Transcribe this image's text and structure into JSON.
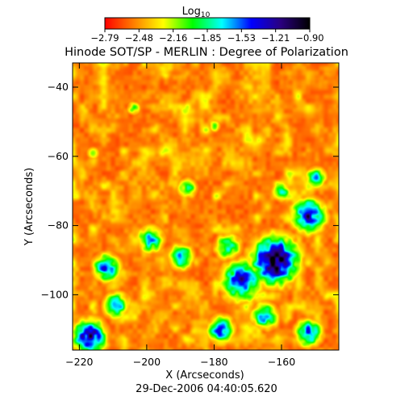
{
  "chart_data": {
    "type": "heatmap",
    "title": "Hinode SOT/SP - MERLIN : Degree of Polarization",
    "colorbar": {
      "label_base": "Log",
      "label_subscript": "10",
      "ticks": [
        "-2.79",
        "-2.48",
        "-2.16",
        "-1.85",
        "-1.53",
        "-1.21",
        "-0.90"
      ],
      "range": [
        -2.79,
        -0.9
      ],
      "colormap": [
        "#ff0000",
        "#ff8000",
        "#ffff00",
        "#00ff00",
        "#00ffff",
        "#0000ff",
        "#2a0080",
        "#000000"
      ]
    },
    "xlabel": "X (Arcseconds)",
    "ylabel": "Y (Arcseconds)",
    "xlim": [
      -222,
      -143
    ],
    "ylim": [
      -116,
      -33
    ],
    "xticks": [
      -220,
      -200,
      -180,
      -160
    ],
    "yticks": [
      -100,
      -80,
      -60,
      -40
    ],
    "timestamp": "29-Dec-2006 04:40:05.620",
    "features": [
      {
        "x": -162,
        "y": -90,
        "level": -1.0,
        "radius": 7
      },
      {
        "x": -172,
        "y": -96,
        "level": -1.4,
        "radius": 6
      },
      {
        "x": -152,
        "y": -77,
        "level": -1.3,
        "radius": 5
      },
      {
        "x": -150,
        "y": -66,
        "level": -1.6,
        "radius": 3
      },
      {
        "x": -176,
        "y": -86,
        "level": -1.8,
        "radius": 4
      },
      {
        "x": -190,
        "y": -89,
        "level": -1.7,
        "radius": 4
      },
      {
        "x": -199,
        "y": -84,
        "level": -1.7,
        "radius": 4
      },
      {
        "x": -212,
        "y": -92,
        "level": -1.5,
        "radius": 4
      },
      {
        "x": -217,
        "y": -112,
        "level": -1.2,
        "radius": 5
      },
      {
        "x": -209,
        "y": -103,
        "level": -1.7,
        "radius": 4
      },
      {
        "x": -178,
        "y": -110,
        "level": -1.5,
        "radius": 4
      },
      {
        "x": -165,
        "y": -106,
        "level": -1.6,
        "radius": 4
      },
      {
        "x": -152,
        "y": -111,
        "level": -1.5,
        "radius": 4
      },
      {
        "x": -188,
        "y": -69,
        "level": -1.9,
        "radius": 3
      },
      {
        "x": -160,
        "y": -70,
        "level": -1.9,
        "radius": 3
      },
      {
        "x": -204,
        "y": -46,
        "level": -2.0,
        "radius": 2
      },
      {
        "x": -180,
        "y": -51,
        "level": -2.1,
        "radius": 2
      },
      {
        "x": -216,
        "y": -59,
        "level": -2.1,
        "radius": 2
      }
    ]
  }
}
